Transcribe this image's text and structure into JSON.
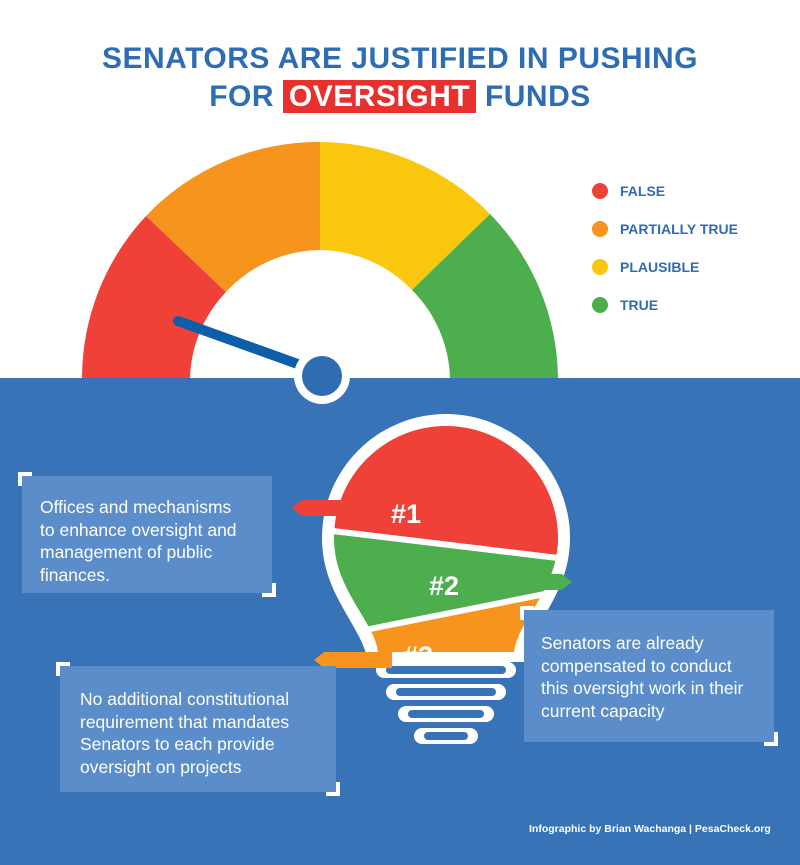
{
  "title": {
    "line1": "SENATORS ARE JUSTIFIED IN PUSHING",
    "line2_prefix": "FOR",
    "line2_highlight": "OVERSIGHT",
    "line2_suffix": "FUNDS"
  },
  "gauge": {
    "segments": [
      {
        "label": "FALSE",
        "color": "#ef4138"
      },
      {
        "label": "PARTIALLY TRUE",
        "color": "#f7941e"
      },
      {
        "label": "PLAUSIBLE",
        "color": "#f9c80e"
      },
      {
        "label": "TRUE",
        "color": "#4cae4c"
      }
    ],
    "needle_points_to": "FALSE",
    "needle_color": "#0d5ea8"
  },
  "legend": [
    {
      "label": "FALSE",
      "color": "#ef4138"
    },
    {
      "label": "PARTIALLY TRUE",
      "color": "#f7941e"
    },
    {
      "label": "PLAUSIBLE",
      "color": "#f9c80e"
    },
    {
      "label": "TRUE",
      "color": "#4cae4c"
    }
  ],
  "bulb": {
    "bands": [
      {
        "tag": "#1",
        "color": "#ef4138"
      },
      {
        "tag": "#2",
        "color": "#4cae4c"
      },
      {
        "tag": "#3",
        "color": "#f7941e"
      }
    ]
  },
  "points": [
    {
      "lines": [
        "Offices and mechanisms",
        "to enhance oversight and",
        "management of public",
        "finances."
      ]
    },
    {
      "lines": [
        "Senators are already",
        "compensated to conduct",
        "this oversight work in their",
        "current capacity"
      ]
    },
    {
      "lines": [
        "No additional constitutional",
        "requirement that mandates",
        "Senators to each provide",
        "oversight on projects"
      ]
    }
  ],
  "credit": "Infographic by Brian Wachanga | PesaCheck.org",
  "colors": {
    "title_blue": "#2f6db3",
    "panel_blue": "#3872b7",
    "box_blue": "#5a8dca"
  }
}
